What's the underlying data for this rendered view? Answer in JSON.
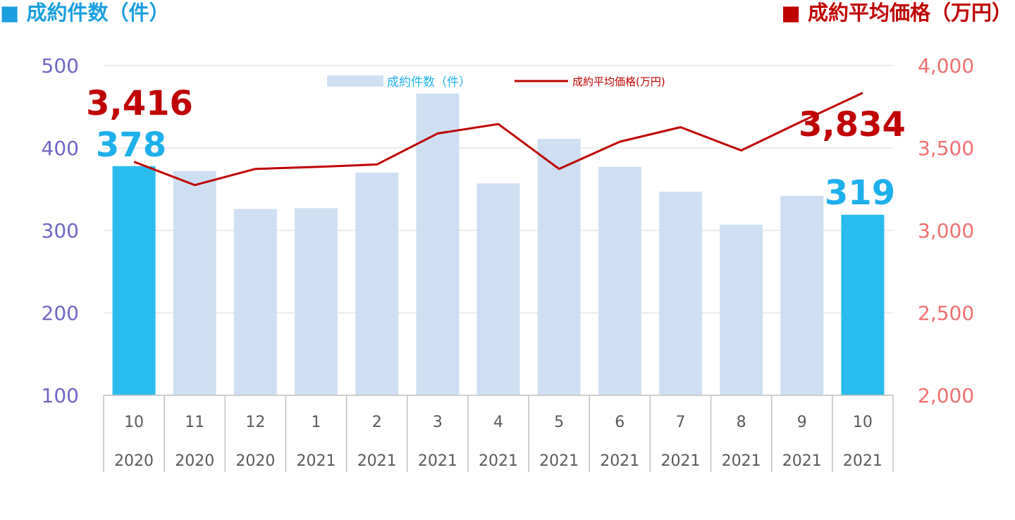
{
  "chart_data": {
    "type": "bar",
    "heading_left": "■ 成約件数（件）",
    "heading_right": "■ 成約平均価格（万円）",
    "legend": {
      "bar_label": "成約件数（件）",
      "line_label": "成約平均価格(万円)"
    },
    "categories": [
      {
        "month": "10",
        "year": "2020"
      },
      {
        "month": "11",
        "year": "2020"
      },
      {
        "month": "12",
        "year": "2020"
      },
      {
        "month": "1",
        "year": "2021"
      },
      {
        "month": "2",
        "year": "2021"
      },
      {
        "month": "3",
        "year": "2021"
      },
      {
        "month": "4",
        "year": "2021"
      },
      {
        "month": "5",
        "year": "2021"
      },
      {
        "month": "6",
        "year": "2021"
      },
      {
        "month": "7",
        "year": "2021"
      },
      {
        "month": "8",
        "year": "2021"
      },
      {
        "month": "9",
        "year": "2021"
      },
      {
        "month": "10",
        "year": "2021"
      }
    ],
    "series": [
      {
        "name": "成約件数（件）",
        "type": "bar",
        "axis": "left",
        "values": [
          378,
          372,
          326,
          327,
          370,
          466,
          357,
          411,
          377,
          347,
          307,
          342,
          319
        ],
        "highlight_indices": [
          0,
          12
        ]
      },
      {
        "name": "成約平均価格(万円)",
        "type": "line",
        "axis": "right",
        "values": [
          3416,
          3275,
          3373,
          3385,
          3400,
          3588,
          3645,
          3373,
          3538,
          3626,
          3485,
          3662,
          3834
        ]
      }
    ],
    "y_left": {
      "min": 100,
      "max": 500,
      "ticks": [
        "500",
        "400",
        "300",
        "200",
        "100"
      ]
    },
    "y_right": {
      "min": 2000,
      "max": 4000,
      "ticks": [
        "4,000",
        "3,500",
        "3,000",
        "2,500",
        "2,000"
      ]
    },
    "callouts": {
      "price_first": "3,416",
      "count_first": "378",
      "price_last": "3,834",
      "count_last": "319"
    },
    "grid": true,
    "colors": {
      "bar": "#cfdff3",
      "bar_highlight": "#2bbcee",
      "line": "#c00000",
      "left_axis_text": "#7067c6",
      "right_axis_text": "#f07070",
      "heading_left": "#1a9fe0",
      "heading_right": "#c00000",
      "callout_count": "#1eb0ec",
      "callout_price": "#c00000",
      "x_text": "#595959"
    }
  }
}
